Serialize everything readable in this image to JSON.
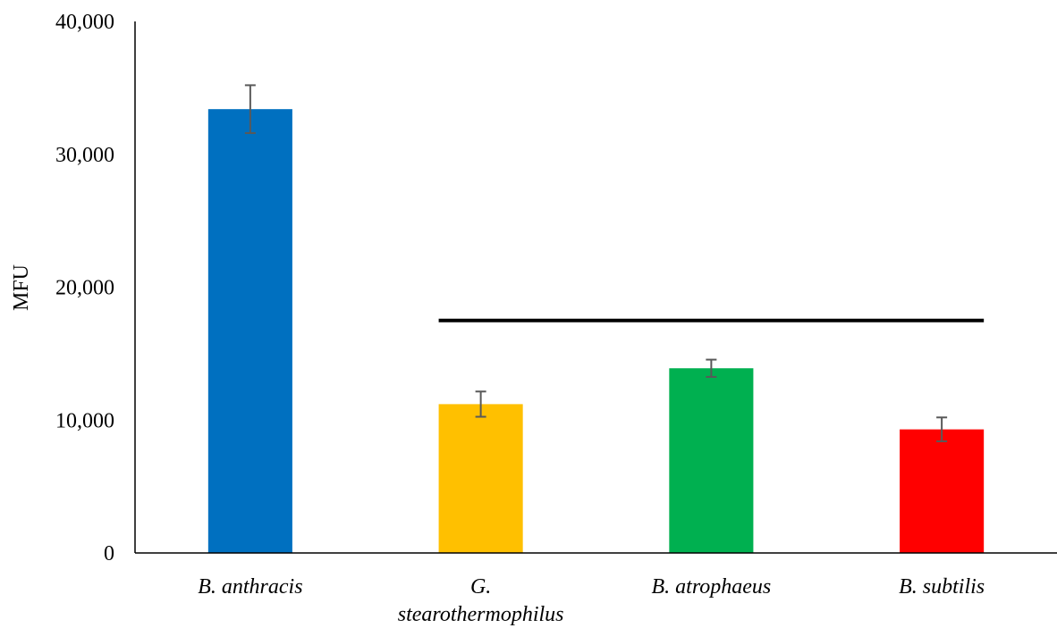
{
  "chart_data": {
    "type": "bar",
    "title": "",
    "xlabel": "",
    "ylabel": "MFU",
    "ylim": [
      0,
      40000
    ],
    "yticks": [
      0,
      10000,
      20000,
      30000,
      40000
    ],
    "ytick_labels": [
      "0",
      "10,000",
      "20,000",
      "30,000",
      "40,000"
    ],
    "grid": false,
    "legend": "none",
    "categories": [
      [
        "B. anthracis"
      ],
      [
        "G.",
        "stearothermophilus"
      ],
      [
        "B. atrophaeus"
      ],
      [
        "B. subtilis"
      ]
    ],
    "values": [
      33400,
      11200,
      13900,
      9300
    ],
    "error": [
      1800,
      950,
      650,
      900
    ],
    "colors": [
      "#0070C0",
      "#FFC000",
      "#00B050",
      "#FF0000"
    ],
    "error_color": "#595959",
    "annotations": [
      {
        "type": "bracket-line",
        "from_category": 1,
        "to_category": 3,
        "y": 17500,
        "color": "#000000"
      }
    ]
  }
}
